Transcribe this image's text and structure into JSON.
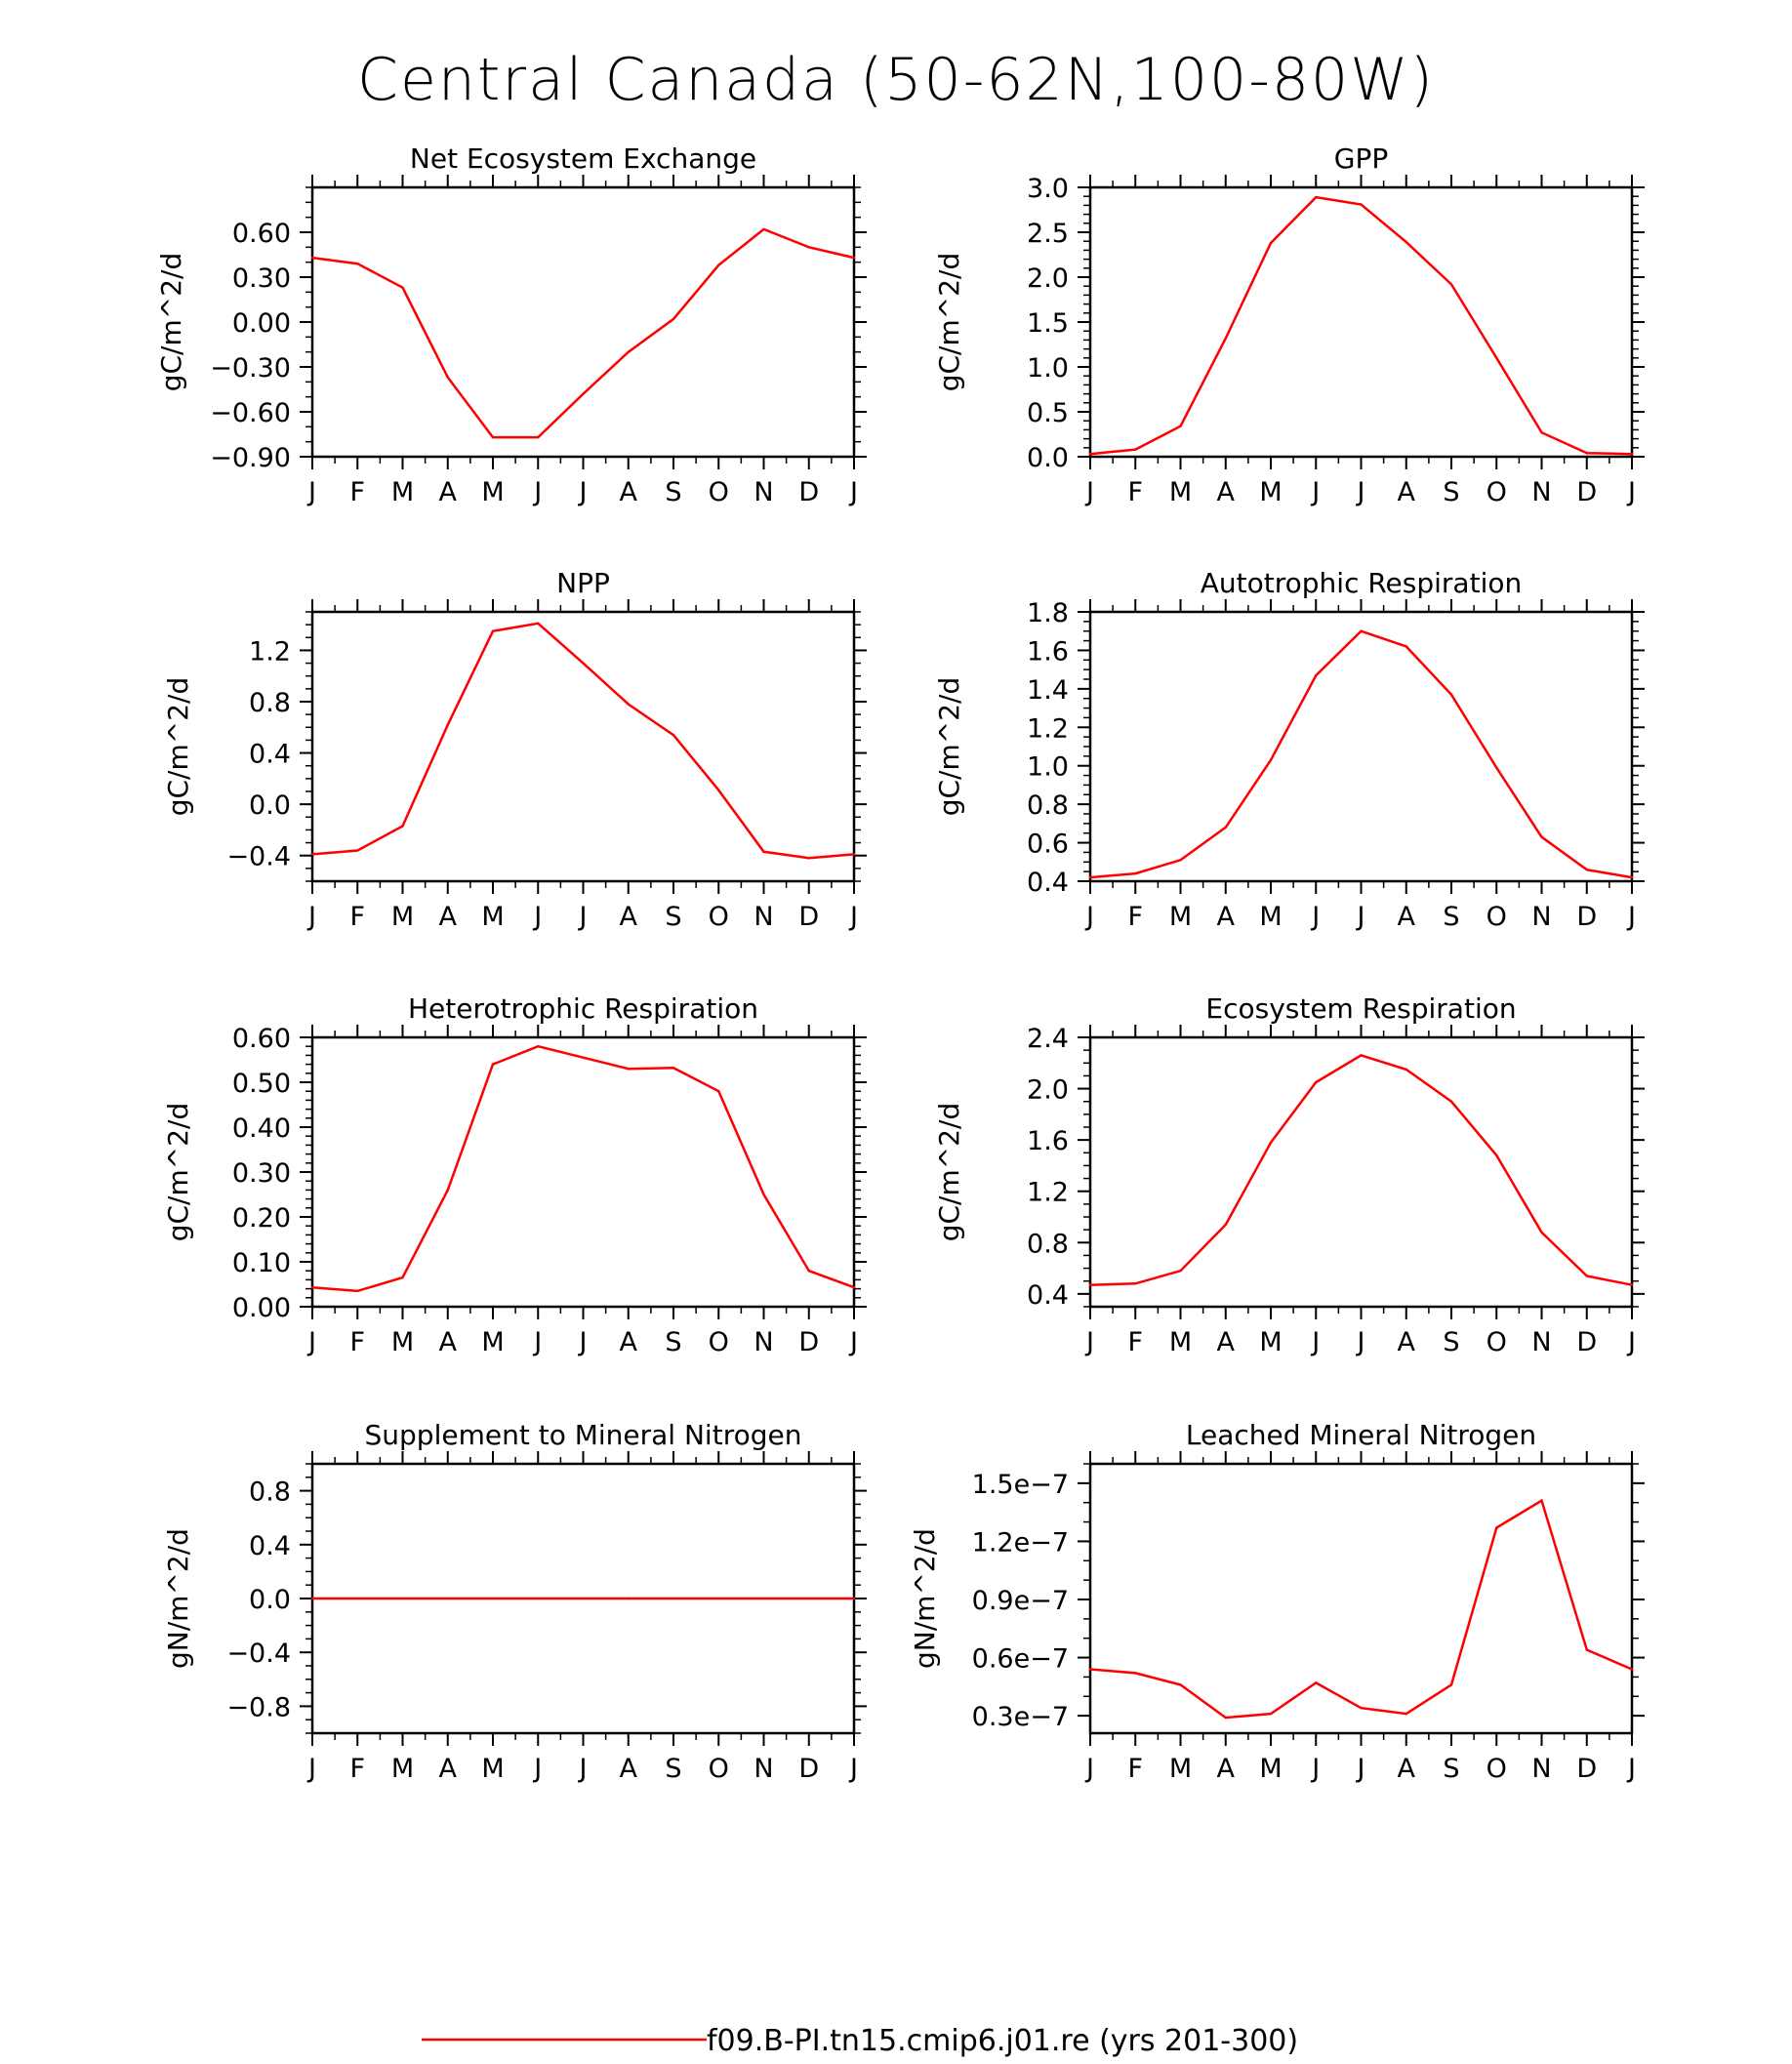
{
  "title": "Central Canada (50-62N,100-80W)",
  "series_color": "#ff0000",
  "legend": {
    "label": "f09.B-PI.tn15.cmip6.j01.re (yrs 201-300)"
  },
  "months": [
    "J",
    "F",
    "M",
    "A",
    "M",
    "J",
    "J",
    "A",
    "S",
    "O",
    "N",
    "D",
    "J"
  ],
  "chart_data": [
    {
      "type": "line",
      "title": "Net Ecosystem Exchange",
      "ylabel": "gC/m^2/d",
      "ylim": [
        -0.9,
        0.9
      ],
      "yticks": [
        -0.9,
        -0.6,
        -0.3,
        0.0,
        0.3,
        0.6
      ],
      "yticklabels": [
        "-0.90",
        "-0.60",
        "-0.30",
        "0.00",
        "0.30",
        "0.60"
      ],
      "yminor": 0.1,
      "values": [
        0.43,
        0.39,
        0.23,
        -0.37,
        -0.77,
        -0.77,
        -0.48,
        -0.2,
        0.02,
        0.38,
        0.62,
        0.5,
        0.43
      ]
    },
    {
      "type": "line",
      "title": "GPP",
      "ylabel": "gC/m^2/d",
      "ylim": [
        0.0,
        3.0
      ],
      "yticks": [
        0.0,
        0.5,
        1.0,
        1.5,
        2.0,
        2.5,
        3.0
      ],
      "yticklabels": [
        "0.0",
        "0.5",
        "1.0",
        "1.5",
        "2.0",
        "2.5",
        "3.0"
      ],
      "yminor": 0.1,
      "values": [
        0.03,
        0.08,
        0.34,
        1.32,
        2.38,
        2.89,
        2.81,
        2.39,
        1.92,
        1.1,
        0.27,
        0.04,
        0.03
      ]
    },
    {
      "type": "line",
      "title": "NPP",
      "ylabel": "gC/m^2/d",
      "ylim": [
        -0.6,
        1.5
      ],
      "yticks": [
        -0.4,
        0.0,
        0.4,
        0.8,
        1.2
      ],
      "yticklabels": [
        "-0.4",
        "0.0",
        "0.4",
        "0.8",
        "1.2"
      ],
      "yminor": 0.1,
      "values": [
        -0.39,
        -0.36,
        -0.17,
        0.62,
        1.35,
        1.41,
        1.1,
        0.78,
        0.54,
        0.11,
        -0.37,
        -0.42,
        -0.39
      ]
    },
    {
      "type": "line",
      "title": "Autotrophic Respiration",
      "ylabel": "gC/m^2/d",
      "ylim": [
        0.4,
        1.8
      ],
      "yticks": [
        0.4,
        0.6,
        0.8,
        1.0,
        1.2,
        1.4,
        1.6,
        1.8
      ],
      "yticklabels": [
        "0.4",
        "0.6",
        "0.8",
        "1.0",
        "1.2",
        "1.4",
        "1.6",
        "1.8"
      ],
      "yminor": 0.05,
      "values": [
        0.42,
        0.44,
        0.51,
        0.68,
        1.03,
        1.47,
        1.7,
        1.62,
        1.37,
        0.99,
        0.63,
        0.46,
        0.42
      ]
    },
    {
      "type": "line",
      "title": "Heterotrophic Respiration",
      "ylabel": "gC/m^2/d",
      "ylim": [
        0.0,
        0.6
      ],
      "yticks": [
        0.0,
        0.1,
        0.2,
        0.3,
        0.4,
        0.5,
        0.6
      ],
      "yticklabels": [
        "0.00",
        "0.10",
        "0.20",
        "0.30",
        "0.40",
        "0.50",
        "0.60"
      ],
      "yminor": 0.02,
      "values": [
        0.043,
        0.035,
        0.065,
        0.26,
        0.54,
        0.58,
        0.555,
        0.53,
        0.532,
        0.48,
        0.25,
        0.08,
        0.043
      ]
    },
    {
      "type": "line",
      "title": "Ecosystem Respiration",
      "ylabel": "gC/m^2/d",
      "ylim": [
        0.3,
        2.4
      ],
      "yticks": [
        0.4,
        0.8,
        1.2,
        1.6,
        2.0,
        2.4
      ],
      "yticklabels": [
        "0.4",
        "0.8",
        "1.2",
        "1.6",
        "2.0",
        "2.4"
      ],
      "yminor": 0.1,
      "values": [
        0.47,
        0.48,
        0.58,
        0.94,
        1.58,
        2.05,
        2.26,
        2.15,
        1.9,
        1.48,
        0.88,
        0.54,
        0.47
      ]
    },
    {
      "type": "line",
      "title": "Supplement to Mineral Nitrogen",
      "ylabel": "gN/m^2/d",
      "ylim": [
        -1.0,
        1.0
      ],
      "yticks": [
        -0.8,
        -0.4,
        0.0,
        0.4,
        0.8
      ],
      "yticklabels": [
        "-0.8",
        "-0.4",
        "0.0",
        "0.4",
        "0.8"
      ],
      "yminor": 0.1,
      "values": [
        0,
        0,
        0,
        0,
        0,
        0,
        0,
        0,
        0,
        0,
        0,
        0,
        0
      ]
    },
    {
      "type": "line",
      "title": "Leached Mineral Nitrogen",
      "ylabel": "gN/m^2/d",
      "ylim": [
        2.1e-08,
        1.6e-07
      ],
      "yticks": [
        3e-08,
        6e-08,
        9e-08,
        1.2e-07,
        1.5e-07
      ],
      "yticklabels": [
        "0.3e-7",
        "0.6e-7",
        "0.9e-7",
        "1.2e-7",
        "1.5e-7"
      ],
      "yminor": 1e-08,
      "values": [
        5.4e-08,
        5.2e-08,
        4.6e-08,
        2.9e-08,
        3.1e-08,
        4.7e-08,
        3.4e-08,
        3.1e-08,
        4.6e-08,
        1.27e-07,
        1.41e-07,
        6.4e-08,
        5.4e-08
      ]
    }
  ]
}
